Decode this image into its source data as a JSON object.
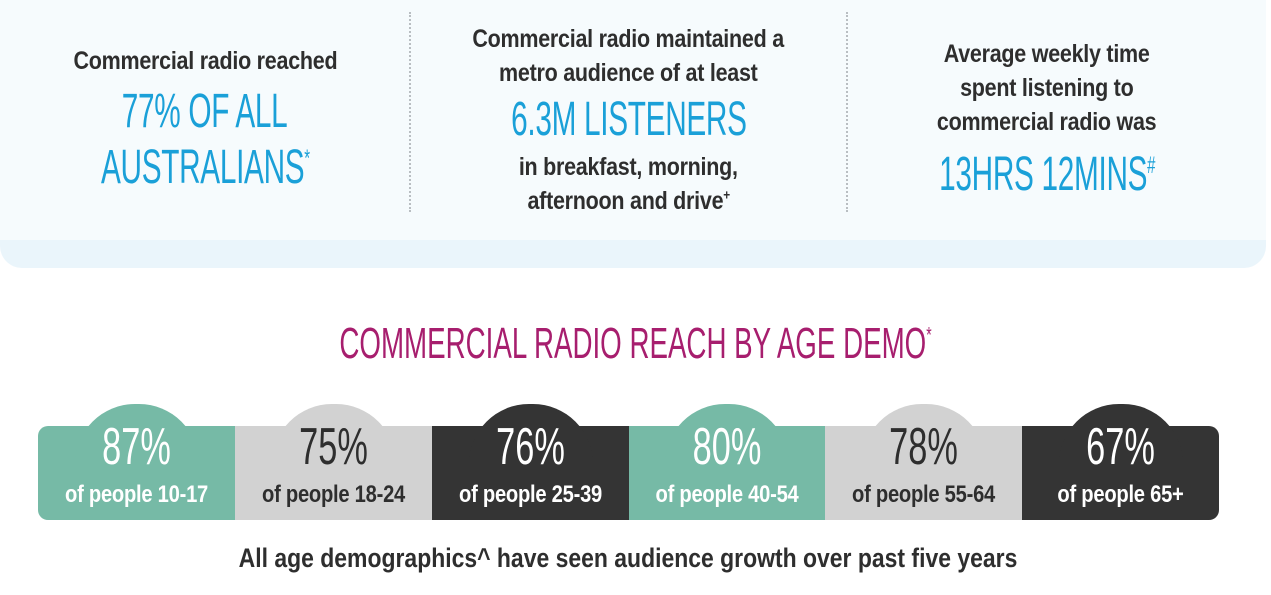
{
  "colors": {
    "blue_accent": "#1aa0d8",
    "heading_magenta": "#a71e6e",
    "dark_text": "#2e2e2e",
    "teal": "#76baa6",
    "light_grey": "#d2d2d2",
    "dark_grey": "#343434"
  },
  "stats": {
    "reach": {
      "lead": "Commercial radio reached",
      "value_line1": "77% OF ALL",
      "value_line2": "AUSTRALIANS",
      "value_mark": "*"
    },
    "metro": {
      "lead_line1": "Commercial radio maintained a",
      "lead_line2": "metro audience of at least",
      "value": "6.3M LISTENERS",
      "tail_line1": "in breakfast, morning,",
      "tail_line2": "afternoon and drive",
      "tail_mark": "+"
    },
    "time": {
      "lead_line1": "Average weekly time",
      "lead_line2": "spent listening to",
      "lead_line3": "commercial radio was",
      "value": "13HRS 12MINS",
      "value_mark": "#"
    }
  },
  "age_section": {
    "heading": "COMMERCIAL RADIO REACH BY AGE DEMO",
    "heading_mark": "*",
    "segments": [
      {
        "percent": "87%",
        "label": "of people 10-17",
        "color": "teal"
      },
      {
        "percent": "75%",
        "label": "of people 18-24",
        "color": "light_grey"
      },
      {
        "percent": "76%",
        "label": "of people 25-39",
        "color": "dark_grey"
      },
      {
        "percent": "80%",
        "label": "of people 40-54",
        "color": "teal"
      },
      {
        "percent": "78%",
        "label": "of people 55-64",
        "color": "light_grey"
      },
      {
        "percent": "67%",
        "label": "of people 65+",
        "color": "dark_grey"
      }
    ],
    "footnote": "All age demographics^ have seen audience growth over past five years"
  }
}
